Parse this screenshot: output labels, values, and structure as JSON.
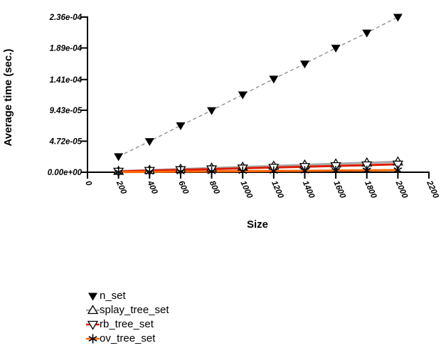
{
  "chart_data": {
    "type": "line",
    "title": "",
    "xlabel": "Size",
    "ylabel": "Average time (sec.)",
    "xlim": [
      0,
      2200
    ],
    "ylim": [
      0,
      0.000236
    ],
    "grid": false,
    "legend_position": "bottom-left",
    "x": [
      200,
      400,
      600,
      800,
      1000,
      1200,
      1400,
      1600,
      1800,
      2000
    ],
    "x_ticks": [
      {
        "v": 0,
        "label": "0"
      },
      {
        "v": 200,
        "label": "200"
      },
      {
        "v": 400,
        "label": "400"
      },
      {
        "v": 600,
        "label": "600"
      },
      {
        "v": 800,
        "label": "800"
      },
      {
        "v": 1000,
        "label": "1000"
      },
      {
        "v": 1200,
        "label": "1200"
      },
      {
        "v": 1400,
        "label": "1400"
      },
      {
        "v": 1600,
        "label": "1600"
      },
      {
        "v": 1800,
        "label": "1800"
      },
      {
        "v": 2000,
        "label": "2000"
      },
      {
        "v": 2200,
        "label": "2200"
      }
    ],
    "y_ticks": [
      {
        "v": 0,
        "label": "0.00e+00"
      },
      {
        "v": 4.72e-05,
        "label": "4.72e-05"
      },
      {
        "v": 9.43e-05,
        "label": "9.43e-05"
      },
      {
        "v": 0.000141,
        "label": "1.41e-04"
      },
      {
        "v": 0.000189,
        "label": "1.89e-04"
      },
      {
        "v": 0.000236,
        "label": "2.36e-04"
      }
    ],
    "series": [
      {
        "name": "n_set",
        "marker": "triangle-down-filled",
        "marker_color": "#000000",
        "line": "dashed",
        "color": "#888888",
        "line_width": 1.3,
        "values": [
          2.4e-05,
          4.7e-05,
          7.1e-05,
          9.4e-05,
          0.000118,
          0.000142,
          0.000165,
          0.000189,
          0.000212,
          0.000236
        ]
      },
      {
        "name": "splay_tree_set",
        "marker": "triangle-up-open",
        "marker_color": "#000000",
        "line": "solid",
        "color": "#a8a8a8",
        "line_width": 3,
        "values": [
          1.6e-06,
          3.2e-06,
          4.8e-06,
          6.4e-06,
          8e-06,
          9.6e-06,
          1.12e-05,
          1.28e-05,
          1.44e-05,
          1.6e-05
        ]
      },
      {
        "name": "rb_tree_set",
        "marker": "triangle-down-open",
        "marker_color": "#000000",
        "line": "solid",
        "color": "#dd1c00",
        "line_width": 3,
        "values": [
          1.2e-06,
          2.4e-06,
          3.6e-06,
          4.8e-06,
          6e-06,
          7.2e-06,
          8.4e-06,
          9.6e-06,
          1.08e-05,
          1.2e-05
        ]
      },
      {
        "name": "ov_tree_set",
        "marker": "asterisk",
        "marker_color": "#000000",
        "line": "solid",
        "color": "#ff6600",
        "line_width": 3,
        "values": [
          3e-07,
          6e-07,
          1e-06,
          1.3e-06,
          1.6e-06,
          1.9e-06,
          2.2e-06,
          2.6e-06,
          2.9e-06,
          3.2e-06
        ]
      }
    ]
  }
}
